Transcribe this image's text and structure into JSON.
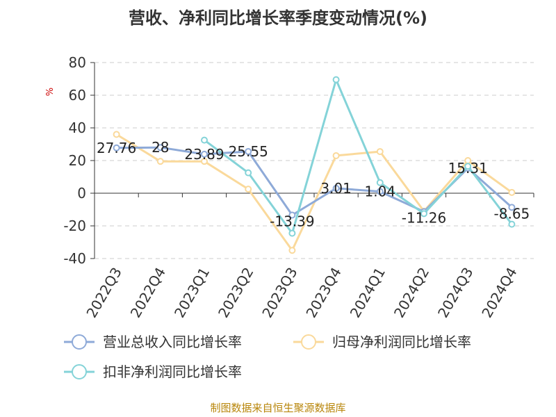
{
  "chart_data": {
    "type": "line",
    "title": "营收、净利同比增长率季度变动情况(%)",
    "ylabel": "%",
    "xlabel": "",
    "categories": [
      "2022Q3",
      "2022Q4",
      "2023Q1",
      "2023Q2",
      "2023Q3",
      "2023Q4",
      "2024Q1",
      "2024Q2",
      "2024Q3",
      "2024Q4"
    ],
    "ylim": [
      -40,
      80
    ],
    "yticks": [
      80,
      60,
      40,
      20,
      0,
      -20,
      -40
    ],
    "grid": true,
    "legend_position": "bottom",
    "series": [
      {
        "name": "营业总收入同比增长率",
        "color": "#8eaad8",
        "values": [
          27.76,
          28,
          23.89,
          25.55,
          -13.39,
          3.01,
          1.04,
          -11.26,
          15.31,
          -8.65
        ],
        "labels": [
          "27.76",
          "28",
          "23.89",
          "25.55",
          "-13.39",
          "3.01",
          "1.04",
          "-11.26",
          "15.31",
          "-8.65"
        ]
      },
      {
        "name": "归母净利润同比增长率",
        "color": "#fad99b",
        "values": [
          36,
          19.5,
          19.5,
          2.5,
          -35,
          23,
          25.5,
          -11,
          20,
          0.5
        ]
      },
      {
        "name": "扣非净利润同比增长率",
        "color": "#84d3d8",
        "values": [
          null,
          null,
          32.5,
          12.5,
          -24.5,
          69.5,
          6.5,
          -12.5,
          16.5,
          -19
        ]
      }
    ],
    "source": "制图数据来自恒生聚源数据库"
  }
}
